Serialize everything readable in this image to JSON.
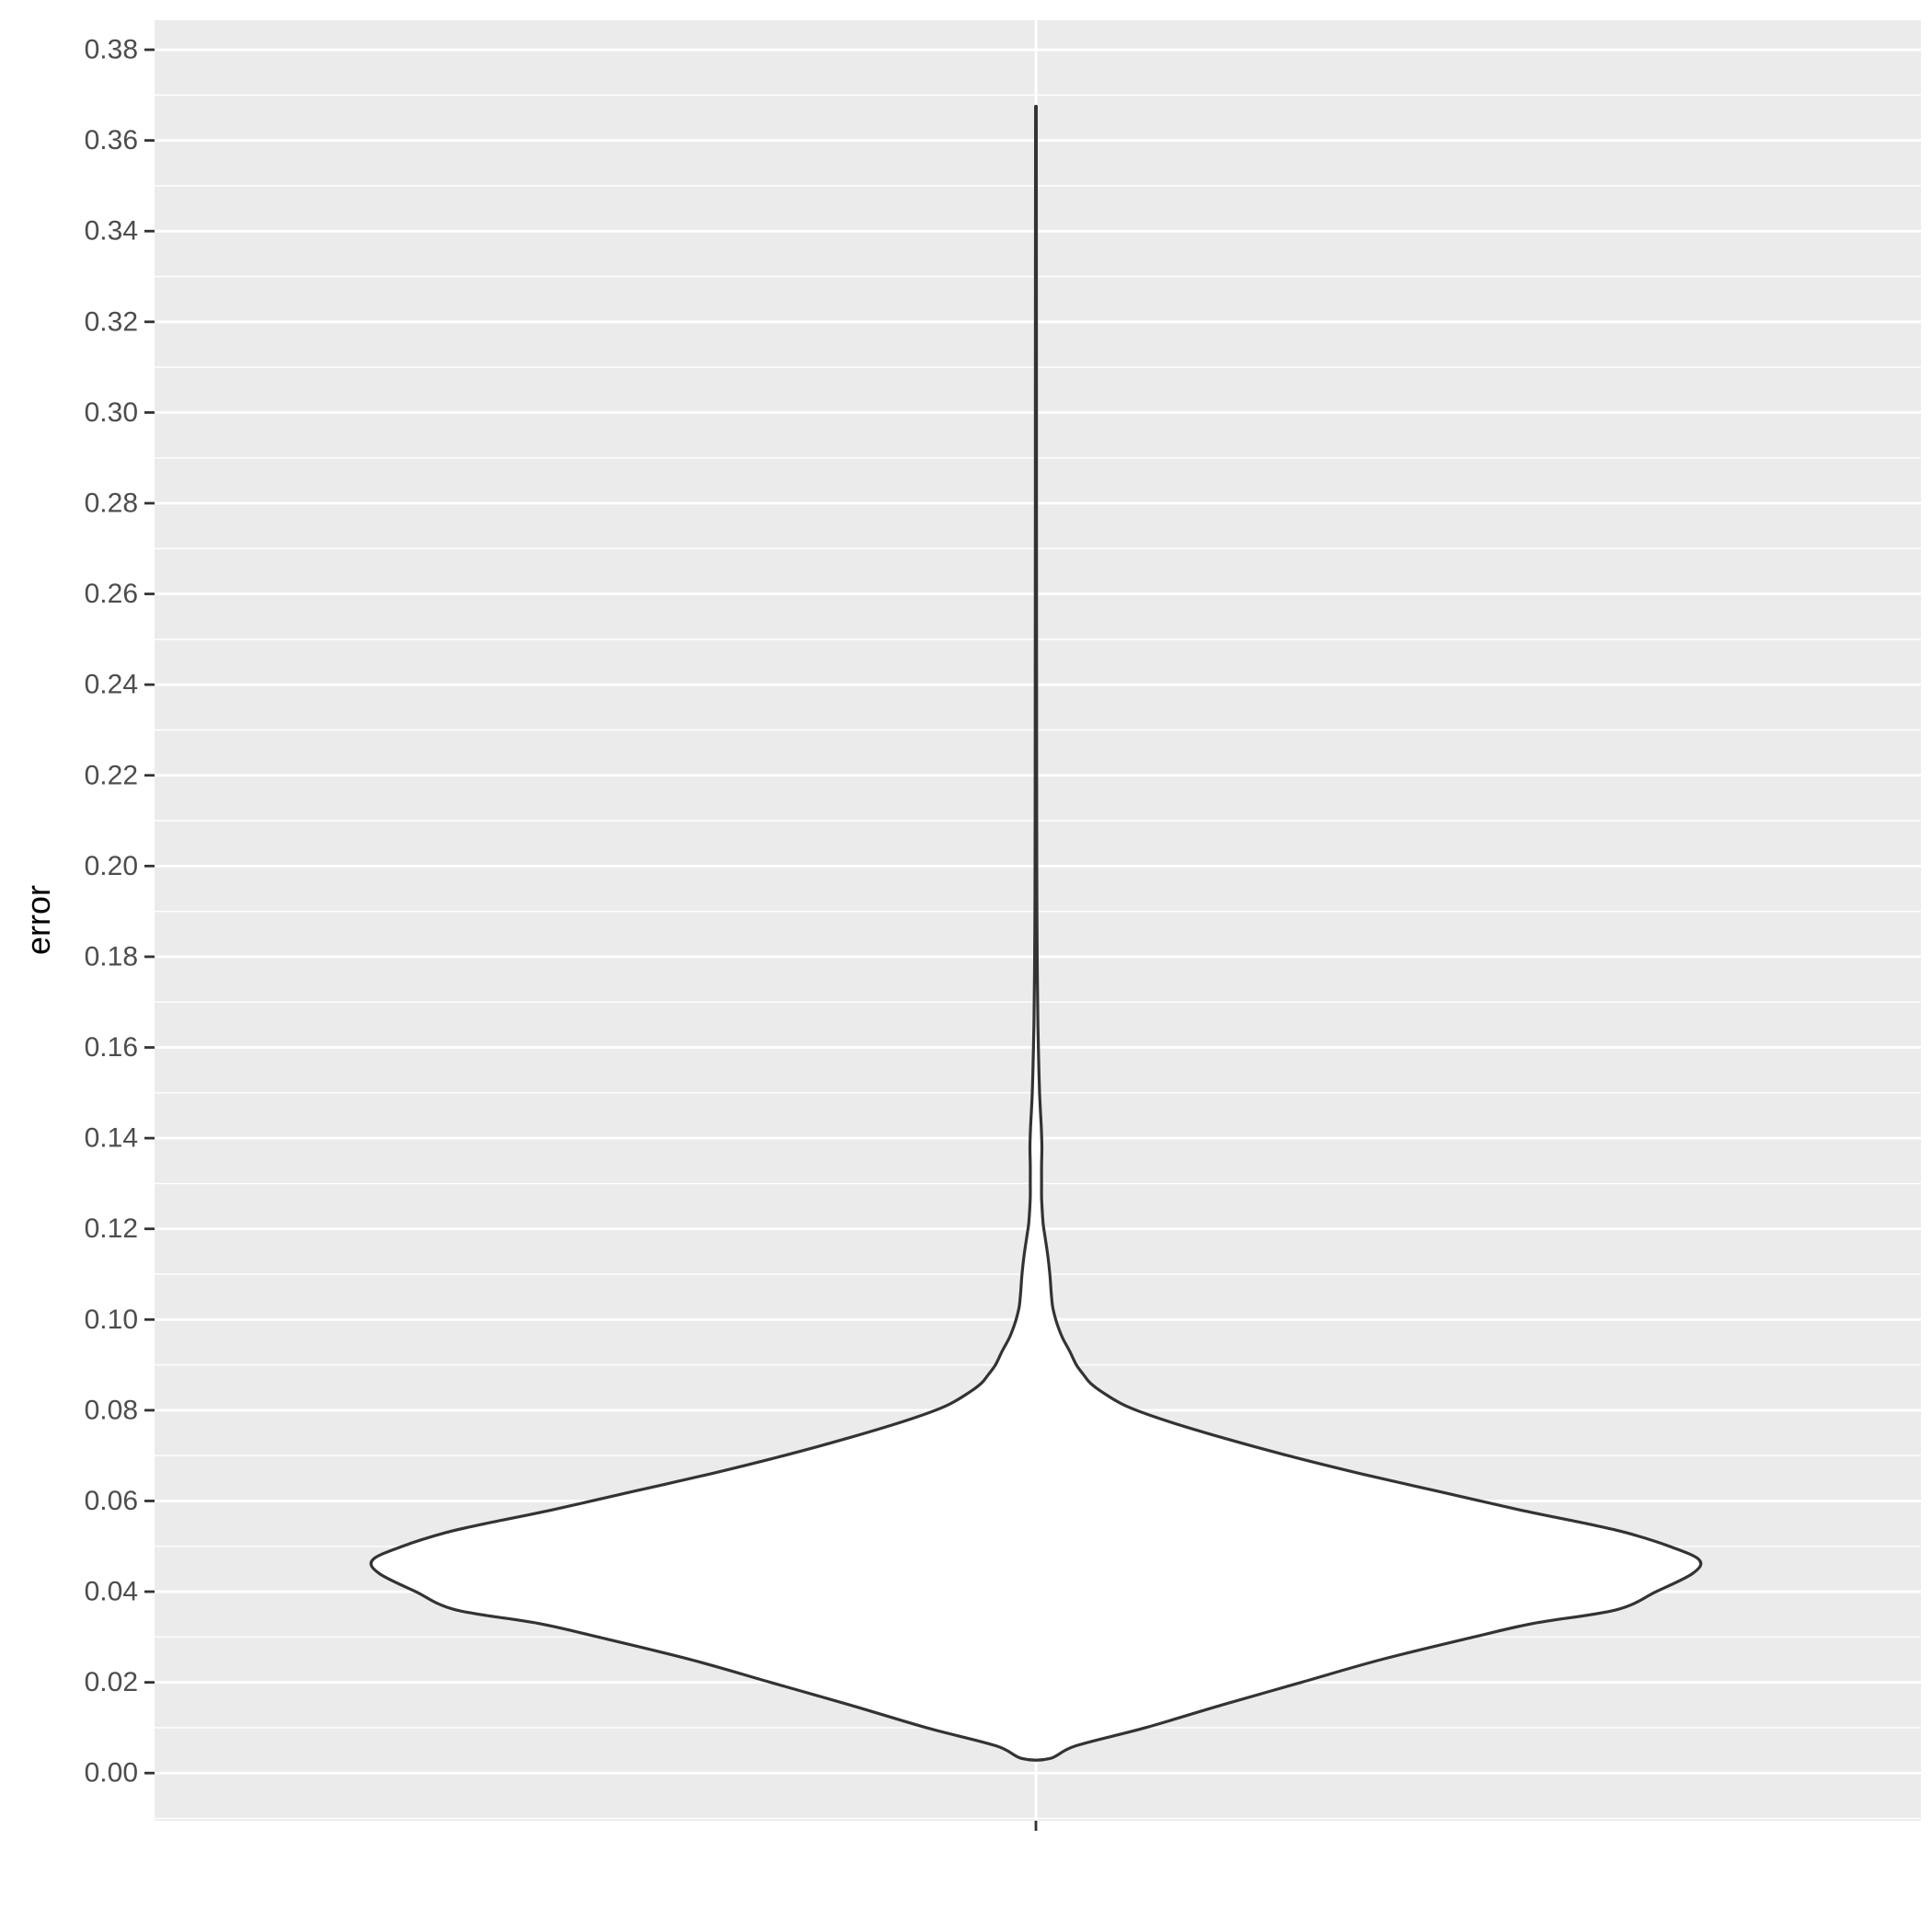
{
  "chart_data": {
    "type": "violin",
    "ylabel": "error",
    "xlabel": "",
    "categories": [
      ""
    ],
    "ylim": [
      -0.0105,
      0.3865
    ],
    "yticks": [
      0.0,
      0.02,
      0.04,
      0.06,
      0.08,
      0.1,
      0.12,
      0.14,
      0.16,
      0.18,
      0.2,
      0.22,
      0.24,
      0.26,
      0.28,
      0.3,
      0.32,
      0.34,
      0.36,
      0.38
    ],
    "ytick_labels": [
      "0.00",
      "0.02",
      "0.04",
      "0.06",
      "0.08",
      "0.10",
      "0.12",
      "0.14",
      "0.16",
      "0.18",
      "0.20",
      "0.22",
      "0.24",
      "0.26",
      "0.28",
      "0.30",
      "0.32",
      "0.34",
      "0.36",
      "0.38"
    ],
    "grid": true,
    "legend": "none",
    "colors": {
      "panel": "#ebebeb",
      "grid": "#ffffff",
      "outline": "#333333",
      "fill": "#ffffff"
    },
    "density_profile": {
      "note_free": true,
      "y": [
        0.0032,
        0.006,
        0.01,
        0.015,
        0.02,
        0.025,
        0.03,
        0.033,
        0.036,
        0.04,
        0.044,
        0.047,
        0.05,
        0.053,
        0.055,
        0.058,
        0.062,
        0.066,
        0.07,
        0.074,
        0.078,
        0.081,
        0.084,
        0.086,
        0.088,
        0.09,
        0.093,
        0.096,
        0.099,
        0.101,
        0.103,
        0.106,
        0.11,
        0.114,
        0.118,
        0.121,
        0.124,
        0.127,
        0.13,
        0.134,
        0.138,
        0.142,
        0.146,
        0.15,
        0.155,
        0.16,
        0.165,
        0.17,
        0.175,
        0.18,
        0.19,
        0.2,
        0.22,
        0.24,
        0.26,
        0.28,
        0.3,
        0.33,
        0.3675
      ],
      "width": [
        0.021,
        0.06,
        0.165,
        0.28,
        0.4,
        0.52,
        0.66,
        0.75,
        0.875,
        0.935,
        0.99,
        1.0,
        0.955,
        0.89,
        0.83,
        0.73,
        0.61,
        0.49,
        0.38,
        0.28,
        0.19,
        0.135,
        0.1,
        0.082,
        0.071,
        0.061,
        0.051,
        0.04,
        0.032,
        0.028,
        0.025,
        0.023,
        0.021,
        0.018,
        0.014,
        0.011,
        0.0095,
        0.0085,
        0.0085,
        0.0085,
        0.009,
        0.0082,
        0.0068,
        0.0055,
        0.0045,
        0.0037,
        0.003,
        0.0026,
        0.0022,
        0.0019,
        0.0015,
        0.0013,
        0.0011,
        0.001,
        0.0009,
        0.0008,
        0.0008,
        0.0007,
        0.0005
      ]
    }
  }
}
